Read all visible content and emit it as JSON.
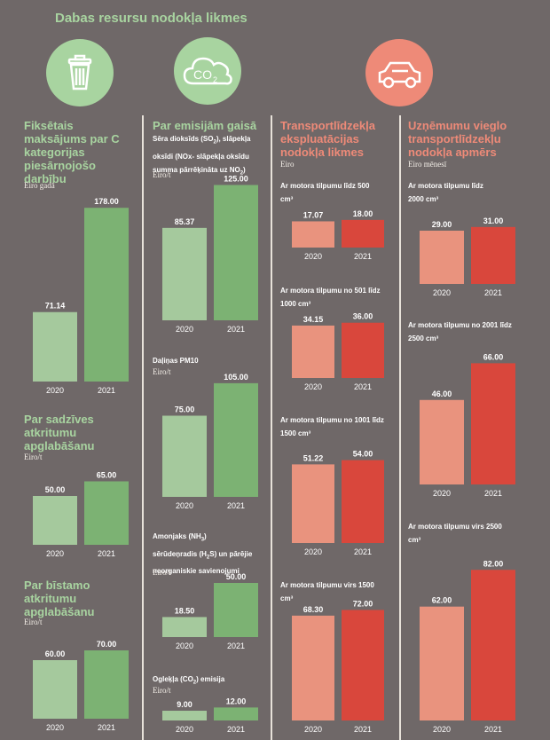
{
  "title": "Dabas resursu nodokļa likmes",
  "colors": {
    "green_light": "#a5c99d",
    "green_dark": "#7cb273",
    "red_light": "#e9937e",
    "red_dark": "#d9473c",
    "green_circle": "#a8d4a0",
    "red_circle": "#ee8a78",
    "bg": "#6f6868"
  },
  "icons": [
    "trash-icon",
    "co2-cloud-icon",
    "car-icon"
  ],
  "columns": {
    "c1": {
      "sections": [
        {
          "title": "Fiksētais maksājums par C kategorijas piesārņojošo darbību",
          "unit": "Eiro gadā"
        },
        {
          "title": "Par sadzīves atkritumu apglabāšanu",
          "unit": "Eiro/t"
        },
        {
          "title": "Par bīstamo atkritumu apglabāšanu",
          "unit": "Eiro/t"
        }
      ]
    },
    "c2": {
      "title": "Par emisijām gaisā",
      "sections": [
        {
          "label_parts": [
            "Sēra dioksīds (SO",
            "2",
            "), slāpekļa",
            "oksīdi (NOx- slāpekļa oksīdu",
            "summa pārrēķināta uz NO",
            "2",
            ")"
          ],
          "unit": "Eiro/t"
        },
        {
          "label": "Daļiņas PM10",
          "unit": "Eiro/t"
        },
        {
          "label_parts": [
            "Amonjaks (NH",
            "3",
            ")",
            "sērūdeņradis (H",
            "2",
            "S) un pārējie",
            "neorganiskie savienojumi"
          ],
          "unit": "Eiro/t"
        },
        {
          "label_parts": [
            "Ogleķļa (CO",
            "2",
            ") emisija"
          ],
          "unit": "Eiro/t"
        }
      ]
    },
    "c3": {
      "title": "Transportlīdzekļa ekspluatācijas nodokļa likmes",
      "unit": "Eiro",
      "sections": [
        {
          "label": "Ar motora tilpumu līdz 500 cm³"
        },
        {
          "label": "Ar motora tilpumu no 501 līdz 1000 cm³"
        },
        {
          "label": "Ar motora tilpumu no 1001 līdz 1500 cm³"
        },
        {
          "label": "Ar motora tilpumu virs 1500 cm³"
        }
      ]
    },
    "c4": {
      "title": "Uzņēmumu vieglo transportlīdzekļu nodokļa apmērs",
      "unit": "Eiro mēnesī",
      "sections": [
        {
          "label": "Ar motora tilpumu līdz 2000 cm³"
        },
        {
          "label": "Ar motora tilpumu no 2001 līdz 2500 cm³"
        },
        {
          "label": "Ar motora tilpumu virs 2500 cm³"
        }
      ]
    }
  },
  "chart_data": [
    {
      "type": "bar",
      "categories": [
        "2020",
        "2021"
      ],
      "values": [
        71.14,
        178.0
      ],
      "title": "Fiksētais maksājums par C kategorijas piesārņojošo darbību"
    },
    {
      "type": "bar",
      "categories": [
        "2020",
        "2021"
      ],
      "values": [
        50.0,
        65.0
      ],
      "title": "Par sadzīves atkritumu apglabāšanu"
    },
    {
      "type": "bar",
      "categories": [
        "2020",
        "2021"
      ],
      "values": [
        60.0,
        70.0
      ],
      "title": "Par bīstamo atkritumu apglabāšanu"
    },
    {
      "type": "bar",
      "categories": [
        "2020",
        "2021"
      ],
      "values": [
        85.37,
        125.0
      ]
    },
    {
      "type": "bar",
      "categories": [
        "2020",
        "2021"
      ],
      "values": [
        75.0,
        105.0
      ],
      "title": "Daļiņas PM10"
    },
    {
      "type": "bar",
      "categories": [
        "2020",
        "2021"
      ],
      "values": [
        18.5,
        50.0
      ]
    },
    {
      "type": "bar",
      "categories": [
        "2020",
        "2021"
      ],
      "values": [
        9.0,
        12.0
      ]
    },
    {
      "type": "bar",
      "categories": [
        "2020",
        "2021"
      ],
      "values": [
        17.07,
        18.0
      ],
      "title": "Ar motora tilpumu līdz 500 cm³"
    },
    {
      "type": "bar",
      "categories": [
        "2020",
        "2021"
      ],
      "values": [
        34.15,
        36.0
      ],
      "title": "Ar motora tilpumu no 501 līdz 1000 cm³"
    },
    {
      "type": "bar",
      "categories": [
        "2020",
        "2021"
      ],
      "values": [
        51.22,
        54.0
      ],
      "title": "Ar motora tilpumu no 1001 līdz 1500 cm³"
    },
    {
      "type": "bar",
      "categories": [
        "2020",
        "2021"
      ],
      "values": [
        68.3,
        72.0
      ],
      "title": "Ar motora tilpumu virs 1500 cm³"
    },
    {
      "type": "bar",
      "categories": [
        "2020",
        "2021"
      ],
      "values": [
        29.0,
        31.0
      ],
      "title": "Ar motora tilpumu līdz 2000 cm³"
    },
    {
      "type": "bar",
      "categories": [
        "2020",
        "2021"
      ],
      "values": [
        46.0,
        66.0
      ],
      "title": "Ar motora tilpumu no 2001 līdz 2500 cm³"
    },
    {
      "type": "bar",
      "categories": [
        "2020",
        "2021"
      ],
      "values": [
        62.0,
        82.0
      ],
      "title": "Ar motora tilpumu virs 2500 cm³"
    }
  ]
}
